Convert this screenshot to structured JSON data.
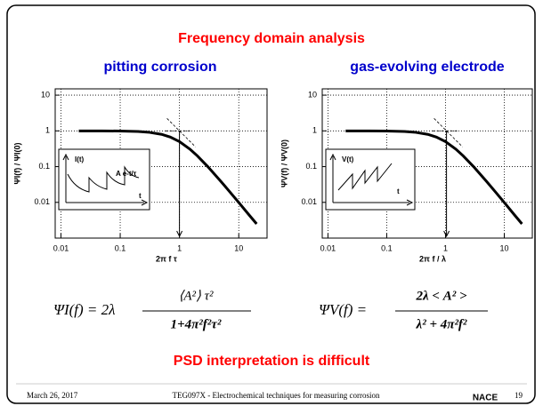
{
  "title": "Frequency domain analysis",
  "left_heading": "pitting corrosion",
  "right_heading": "gas-evolving electrode",
  "chart_data": [
    {
      "type": "line",
      "ylabel": "ΨI(f) / ΨI(0)",
      "xlabel": "2π f τ",
      "log_x": true,
      "log_y": true,
      "grid": true,
      "x": [
        0.02,
        0.05,
        0.1,
        0.2,
        0.3,
        0.5,
        0.7,
        1,
        1.5,
        2,
        3,
        5,
        7,
        10,
        15,
        20
      ],
      "series": [
        {
          "color": "#000000",
          "values": [
            1.0,
            0.998,
            0.99,
            0.962,
            0.917,
            0.8,
            0.671,
            0.5,
            0.308,
            0.2,
            0.1,
            0.0385,
            0.02,
            0.0099,
            0.0044,
            0.0025
          ]
        }
      ],
      "xlim": [
        0.008,
        30
      ],
      "xticks": [
        0.01,
        0.1,
        1,
        10
      ],
      "ylim": [
        0.001,
        15
      ],
      "yticks": [
        10,
        1,
        0.1,
        0.01
      ],
      "inset": {
        "signal": "I(t)",
        "decay": "A e-t/τ",
        "time": "t"
      }
    },
    {
      "type": "line",
      "ylabel": "ΨV(f) / ΨV(0)",
      "xlabel": "2π f / λ",
      "log_x": true,
      "log_y": true,
      "grid": true,
      "x": [
        0.02,
        0.05,
        0.1,
        0.2,
        0.3,
        0.5,
        0.7,
        1,
        1.5,
        2,
        3,
        5,
        7,
        10,
        15,
        20
      ],
      "series": [
        {
          "color": "#000000",
          "values": [
            1.0,
            0.998,
            0.99,
            0.962,
            0.917,
            0.8,
            0.671,
            0.5,
            0.308,
            0.2,
            0.1,
            0.0385,
            0.02,
            0.0099,
            0.0044,
            0.0025
          ]
        }
      ],
      "xlim": [
        0.008,
        30
      ],
      "xticks": [
        0.01,
        0.1,
        1,
        10
      ],
      "ylim": [
        0.001,
        15
      ],
      "yticks": [
        10,
        1,
        0.1,
        0.01
      ],
      "inset": {
        "signal": "V(t)",
        "time": "t"
      }
    }
  ],
  "equation_left": {
    "lhs": "ΨI(f) = 2λ",
    "numerator": "⟨A²⟩ τ²",
    "denominator": "1+4π²f²τ²"
  },
  "equation_right": {
    "lhs": "ΨV(f) =",
    "numerator": "2λ < A² >",
    "denominator": "λ² + 4π²f²"
  },
  "conclusion": "PSD interpretation is difficult",
  "footer": {
    "date": "March 26, 2017",
    "course": "TEG097X - Electrochemical techniques for measuring corrosion",
    "logo": "NACE",
    "page": "19"
  }
}
